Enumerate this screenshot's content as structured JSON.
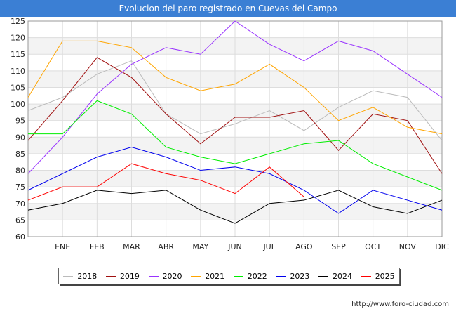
{
  "title": "Evolucion del paro registrado en Cuevas del Campo",
  "footer": "http://www.foro-ciudad.com",
  "chart_data": {
    "type": "line",
    "title": "Evolucion del paro registrado en Cuevas del Campo",
    "xlabel": "",
    "ylabel": "",
    "categories": [
      "",
      "ENE",
      "FEB",
      "MAR",
      "ABR",
      "MAY",
      "JUN",
      "JUL",
      "AGO",
      "SEP",
      "OCT",
      "NOV",
      "DIC"
    ],
    "ylim": [
      60,
      125
    ],
    "yticks": [
      60,
      65,
      70,
      75,
      80,
      85,
      90,
      95,
      100,
      105,
      110,
      115,
      120,
      125
    ],
    "grid": true,
    "legend": "bottom",
    "series": [
      {
        "name": "2018",
        "color": "#bbbbbb",
        "values": [
          98,
          102,
          109,
          113,
          97,
          91,
          94,
          98,
          92,
          99,
          104,
          102,
          89
        ]
      },
      {
        "name": "2019",
        "color": "#a01010",
        "values": [
          89,
          101,
          114,
          108,
          97,
          88,
          96,
          96,
          98,
          86,
          97,
          95,
          79
        ]
      },
      {
        "name": "2020",
        "color": "#9933ff",
        "values": [
          79,
          90,
          103,
          112,
          117,
          115,
          125,
          118,
          113,
          119,
          116,
          109,
          102
        ]
      },
      {
        "name": "2021",
        "color": "#ffa500",
        "values": [
          102,
          119,
          119,
          117,
          108,
          104,
          106,
          112,
          105,
          95,
          99,
          93,
          91
        ]
      },
      {
        "name": "2022",
        "color": "#00ee00",
        "values": [
          91,
          91,
          101,
          97,
          87,
          84,
          82,
          85,
          88,
          89,
          82,
          78,
          74
        ]
      },
      {
        "name": "2023",
        "color": "#0000ee",
        "values": [
          74,
          79,
          84,
          87,
          84,
          80,
          81,
          79,
          74,
          67,
          74,
          71,
          68
        ]
      },
      {
        "name": "2024",
        "color": "#000000",
        "values": [
          68,
          70,
          74,
          73,
          74,
          68,
          64,
          70,
          71,
          74,
          69,
          67,
          71
        ]
      },
      {
        "name": "2025",
        "color": "#ff0000",
        "values": [
          71,
          75,
          75,
          82,
          79,
          77,
          73,
          81,
          72,
          null,
          null,
          null,
          null
        ]
      }
    ]
  }
}
